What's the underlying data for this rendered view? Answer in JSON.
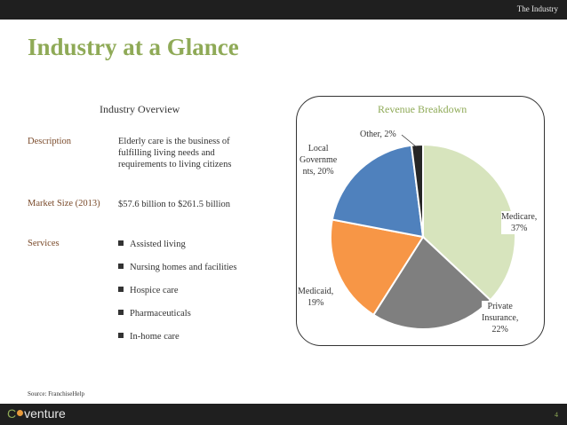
{
  "header": {
    "section": "The Industry"
  },
  "title": "Industry at a Glance",
  "overview": {
    "heading": "Industry Overview",
    "description_label": "Description",
    "description_lines": [
      "Elderly care is the business of",
      "fulfilling living needs and",
      "requirements to living citizens"
    ],
    "market_size_label": "Market Size (2013)",
    "market_size_value": "$57.6 billion to $261.5 billion",
    "services_label": "Services",
    "services": [
      "Assisted living",
      "Nursing homes and facilities",
      "Hospice care",
      "Pharmaceuticals",
      "In-home care"
    ]
  },
  "source": "Source: FranchiseHelp",
  "chart_data": {
    "type": "pie",
    "title": "Revenue Breakdown",
    "slices": [
      {
        "label_lines": [
          "Medicare,",
          "37%"
        ],
        "value": 37,
        "color": "#d7e4bd"
      },
      {
        "label_lines": [
          "Private",
          "Insurance,",
          "22%"
        ],
        "value": 22,
        "color": "#7f7f7f"
      },
      {
        "label_lines": [
          "Medicaid,",
          "19%"
        ],
        "value": 19,
        "color": "#f79646"
      },
      {
        "label_lines": [
          "Local",
          "Governme",
          "nts, 20%"
        ],
        "value": 20,
        "color": "#4f81bd"
      },
      {
        "label_lines": [
          "Other, 2%"
        ],
        "value": 2,
        "color": "#262626"
      }
    ]
  },
  "footer": {
    "logo_prefix": "C",
    "logo_rest": "venture",
    "page_number": "4"
  }
}
